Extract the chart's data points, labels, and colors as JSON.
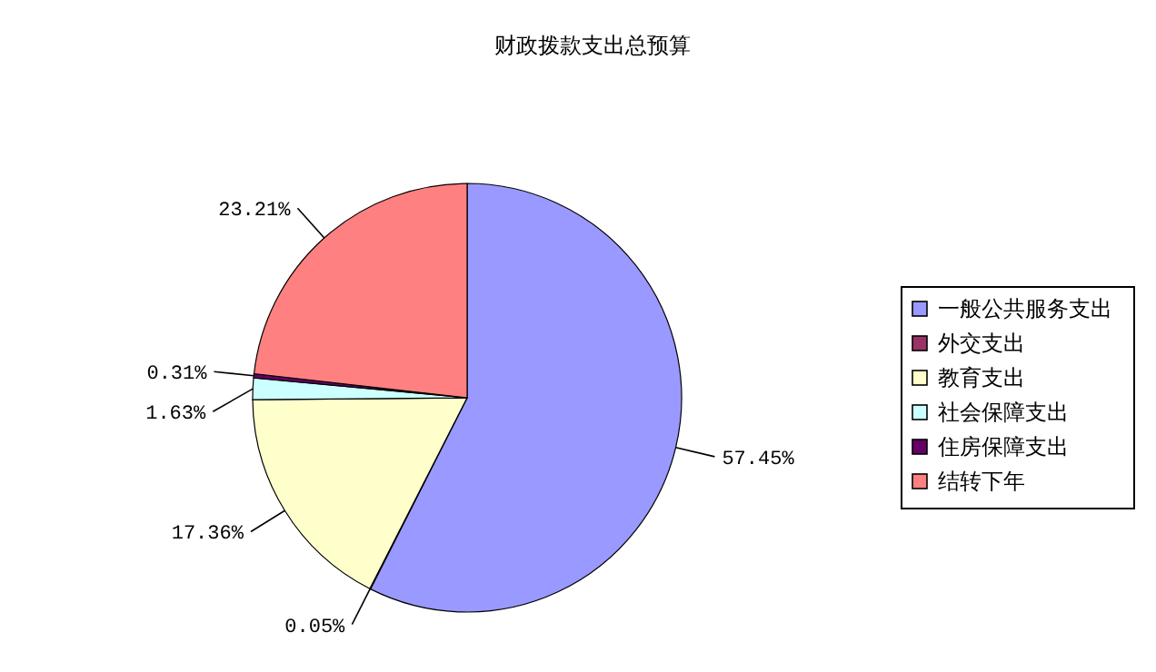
{
  "chart_data": {
    "type": "pie",
    "title": "财政拨款支出总预算",
    "categories": [
      "一般公共服务支出",
      "外交支出",
      "教育支出",
      "社会保障支出",
      "住房保障支出",
      "结转下年"
    ],
    "values": [
      57.45,
      0.05,
      17.36,
      1.63,
      0.31,
      23.21
    ],
    "colors": [
      "#9999ff",
      "#993366",
      "#ffffcc",
      "#ccffff",
      "#660066",
      "#ff8080"
    ],
    "value_labels": [
      "57.45%",
      "0.05%",
      "17.36%",
      "1.63%",
      "0.31%",
      "23.21%"
    ],
    "legend": "right"
  }
}
